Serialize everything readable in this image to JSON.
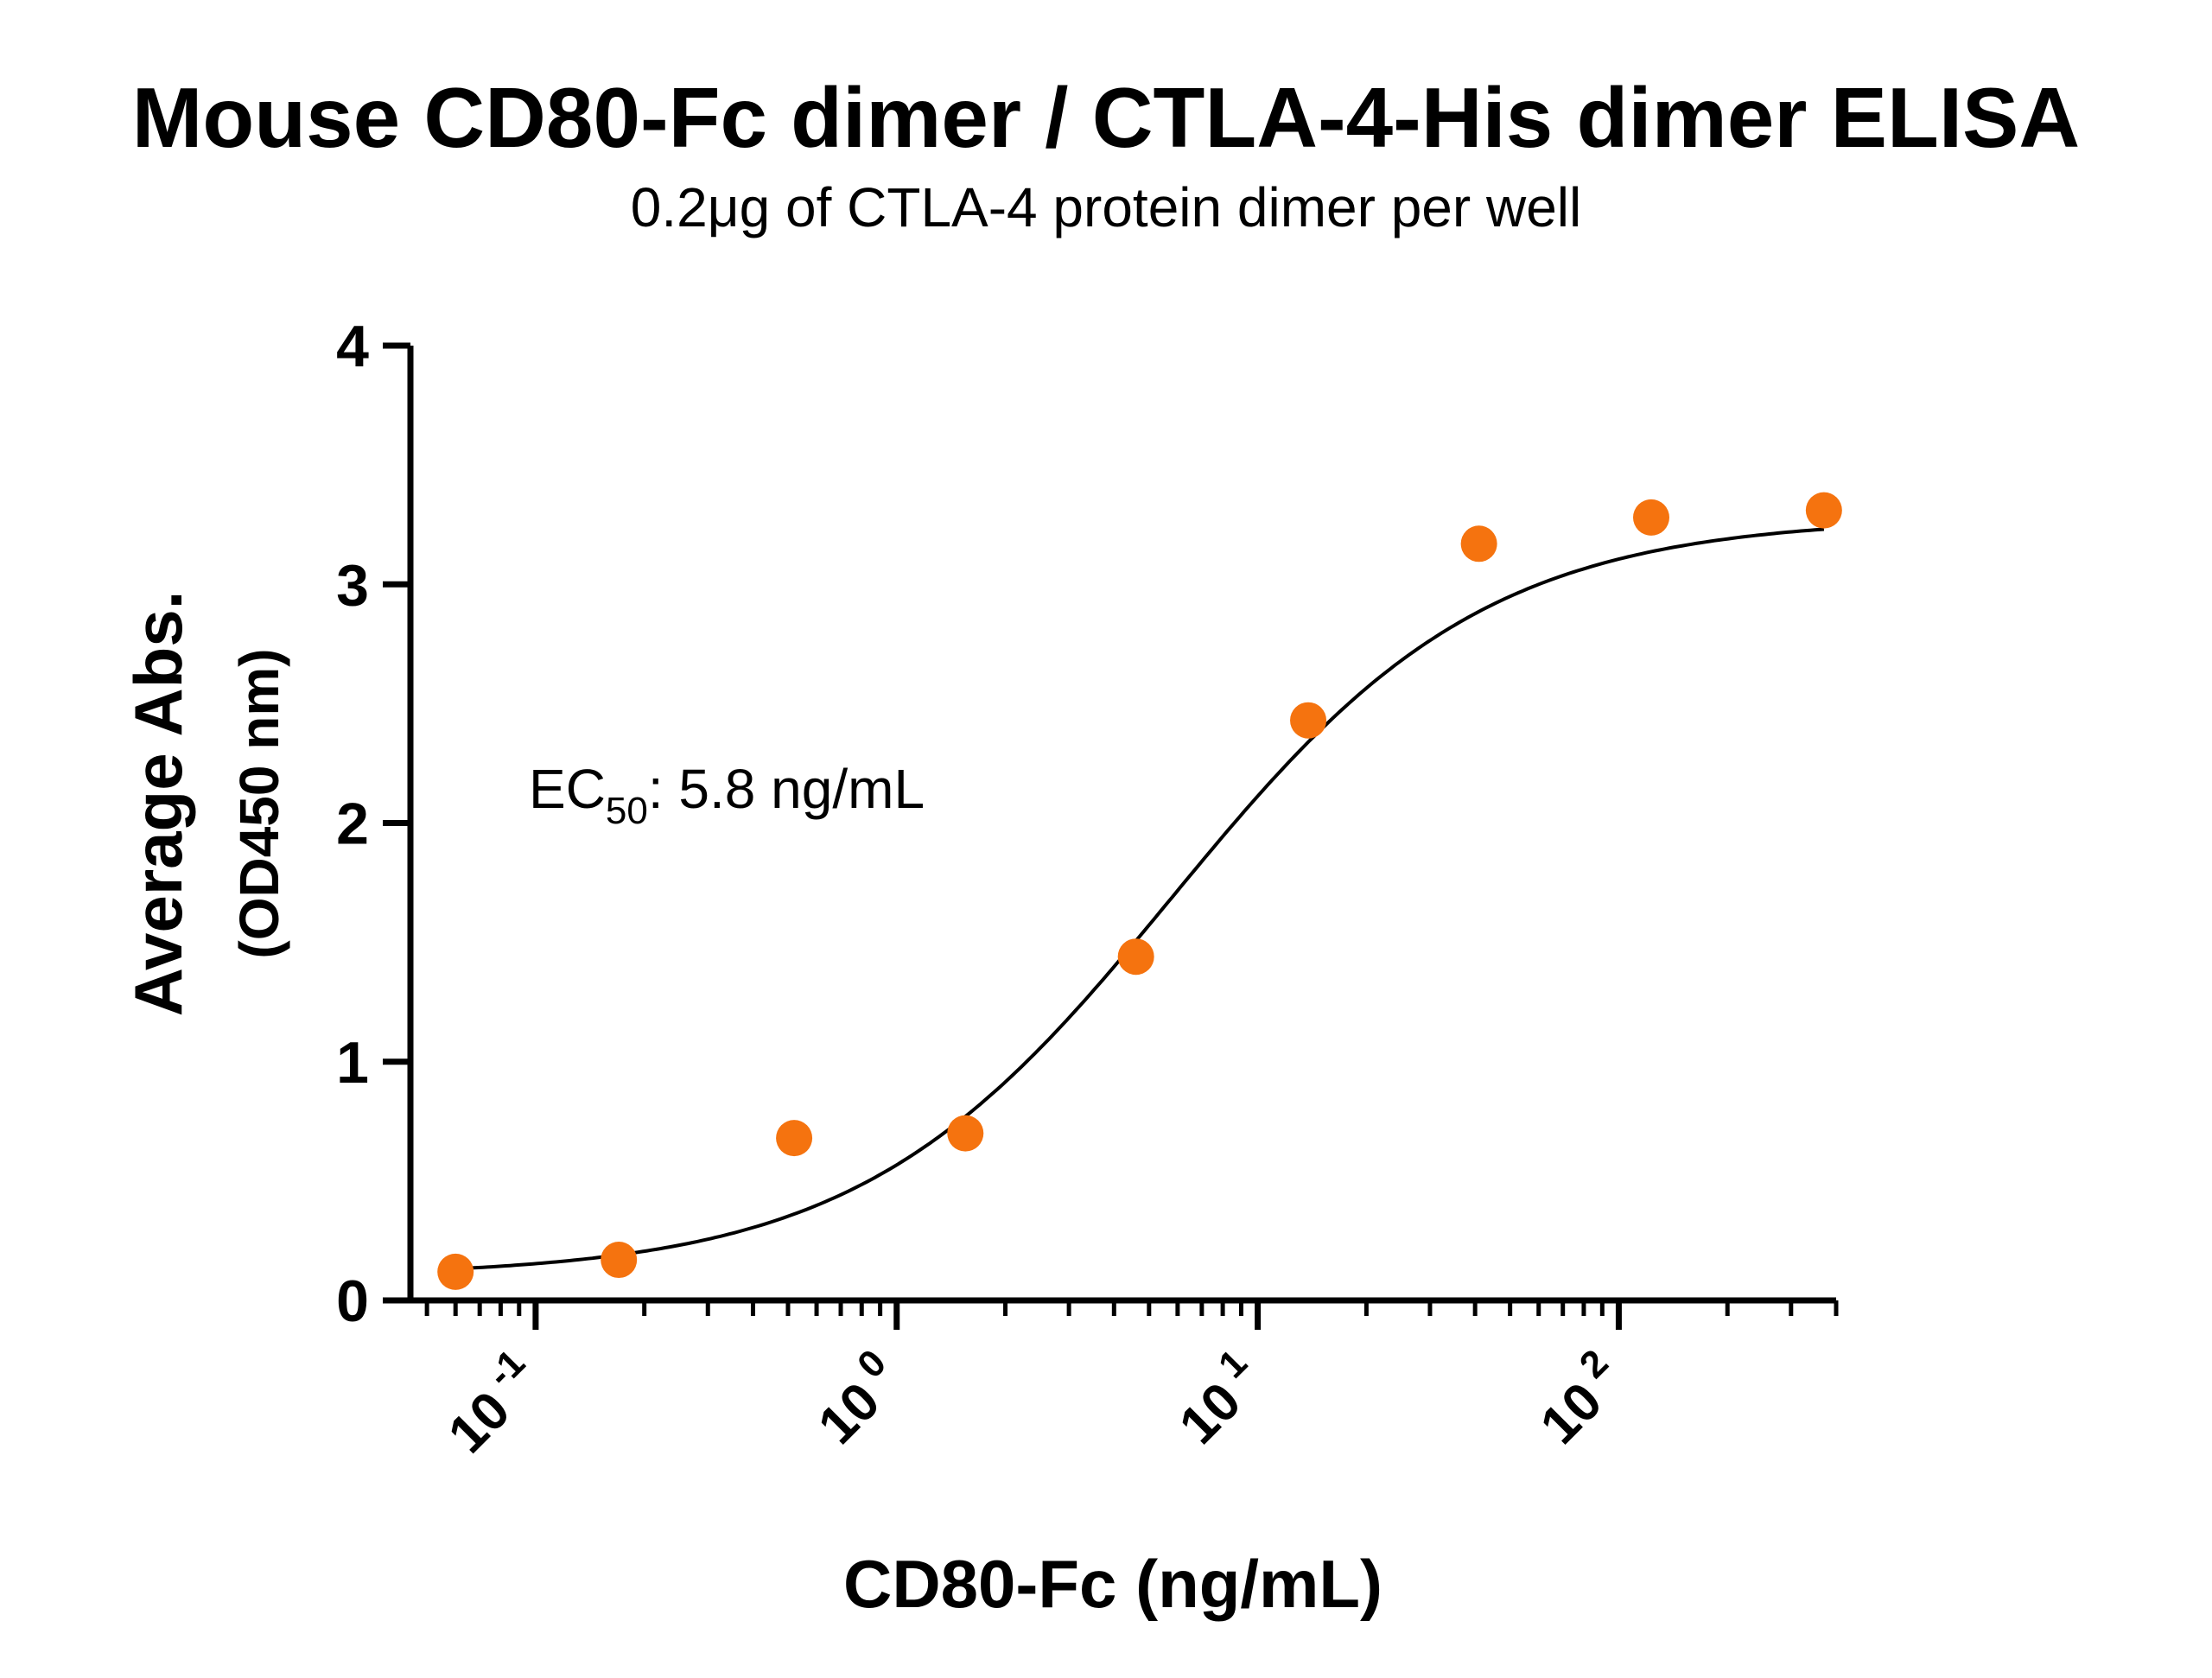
{
  "chart_data": {
    "type": "scatter",
    "title": "Mouse CD80-Fc dimer / CTLA-4-His dimer ELISA",
    "subtitle": "0.2μg of CTLA-4 protein dimer per well",
    "xlabel": "CD80-Fc (ng/mL)",
    "ylabel": "Average Abs.",
    "ylabel_sub": "(OD450 nm)",
    "x_scale": "log",
    "xlim": [
      0.045,
      400
    ],
    "ylim": [
      0,
      4
    ],
    "y_ticks": [
      "0",
      "1",
      "2",
      "3",
      "4"
    ],
    "x_ticks": [
      {
        "base": "10",
        "exp": "-1",
        "value": 0.1
      },
      {
        "base": "10",
        "exp": "0",
        "value": 1
      },
      {
        "base": "10",
        "exp": "1",
        "value": 10
      },
      {
        "base": "10",
        "exp": "2",
        "value": 100
      }
    ],
    "grid": false,
    "legend": "none",
    "point_color": "#F5730F",
    "curve_color": "#000000",
    "series": [
      {
        "x": [
          0.06,
          0.17,
          0.52,
          1.55,
          4.6,
          13.8,
          41,
          123,
          370
        ],
        "y": [
          0.12,
          0.17,
          0.68,
          0.7,
          1.44,
          2.43,
          3.17,
          3.28,
          3.31
        ]
      }
    ],
    "fit": {
      "model": "4PL",
      "bottom": 0.0,
      "top": 3.28,
      "ec50": 5.8,
      "hill": 1.0
    },
    "annotation": {
      "prefix": "EC",
      "sub": "50",
      "text": ": 5.8 ng/mL"
    }
  }
}
